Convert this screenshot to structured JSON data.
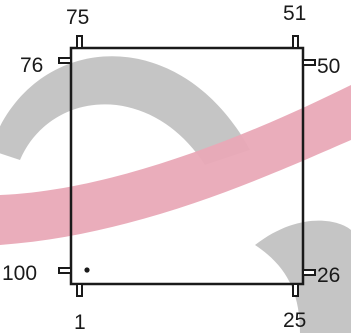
{
  "colors": {
    "watermark_gray": "#bfbfbf",
    "watermark_pink": "#e9a9b7",
    "outline": "#1a1a1a",
    "background": "#ffffff"
  },
  "pins": {
    "top_left_top": "75",
    "top_right_top": "51",
    "top_left_side": "76",
    "top_right_side": "50",
    "bottom_left_side": "100",
    "bottom_right_side": "26",
    "bottom_left_bottom": "1",
    "bottom_right_bottom": "25"
  },
  "pin1_marker": "dot"
}
